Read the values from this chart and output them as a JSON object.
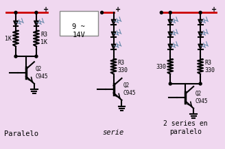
{
  "bg_color": "#f0d8f0",
  "red_wire": "#cc0000",
  "led_emit": "#6688aa",
  "title1": "Paralelo",
  "title2": "serie",
  "title3": "2 series en\nparalelo",
  "label_voltage": "9 ~\n14V",
  "label_r1": "1K",
  "label_r3_1k": "R3\n1K",
  "label_r3_330_2": "R3\n330",
  "label_r3_330_3": "R3\n330",
  "label_330": "330",
  "label_q2_1": "Q2\nC945",
  "label_q2_2": "Q2\nC945",
  "label_q2_3": "Q2\nC945"
}
